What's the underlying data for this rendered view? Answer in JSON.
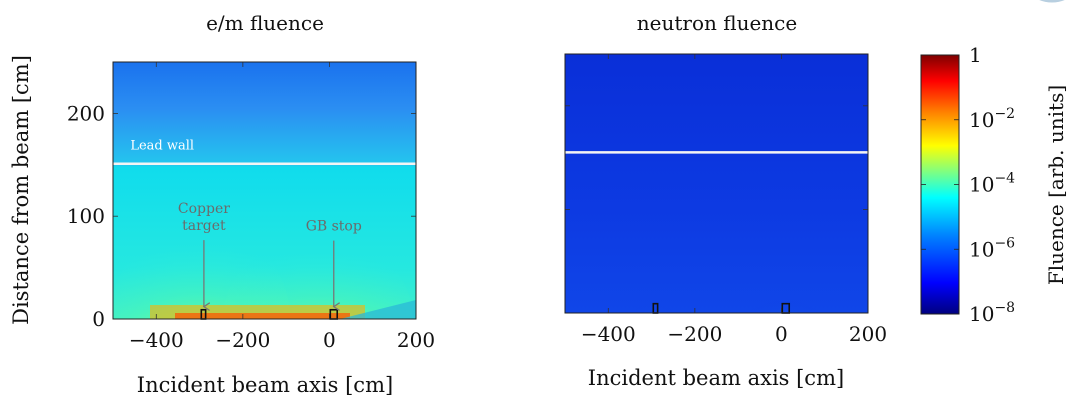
{
  "chart_data": [
    {
      "type": "heatmap",
      "title": "e/m fluence",
      "xlabel": "Incident beam axis [cm]",
      "ylabel": "Distance from beam [cm]",
      "xlim": [
        -500,
        200
      ],
      "ylim": [
        0,
        250
      ],
      "xticks": [
        "−400",
        "−200",
        "0",
        "200"
      ],
      "xtick_values": [
        -400,
        -200,
        0,
        200
      ],
      "yticks": [
        "0",
        "100",
        "200"
      ],
      "ytick_values": [
        0,
        100,
        200
      ],
      "lead_wall_y": 151,
      "annotations": [
        {
          "text": "Lead wall",
          "x": -460,
          "y": 165
        },
        {
          "text_lines": [
            "Copper",
            "target"
          ],
          "x": -290,
          "y": 103,
          "arrow_to": [
            -290,
            12
          ]
        },
        {
          "text_lines": [
            "GB stop"
          ],
          "x": 10,
          "y": 86,
          "arrow_to": [
            10,
            12
          ]
        }
      ],
      "objects": [
        {
          "name": "copper-target",
          "x0": -296,
          "x1": -286,
          "y0": 0,
          "y1": 9
        },
        {
          "name": "gb-stop",
          "x0": 2,
          "x1": 18,
          "y0": 0,
          "y1": 9
        }
      ]
    },
    {
      "type": "heatmap",
      "title": "neutron fluence",
      "xlabel": "Incident beam axis [cm]",
      "ylabel": "",
      "xlim": [
        -500,
        200
      ],
      "ylim": [
        0,
        250
      ],
      "xticks": [
        "−400",
        "−200",
        "0",
        "200"
      ],
      "xtick_values": [
        -400,
        -200,
        0,
        200
      ],
      "yticks": [],
      "lead_wall_y": 155,
      "objects": [
        {
          "name": "copper-target",
          "x0": -296,
          "x1": -286,
          "y0": 0,
          "y1": 9
        },
        {
          "name": "gb-stop",
          "x0": 2,
          "x1": 18,
          "y0": 0,
          "y1": 9
        }
      ]
    }
  ],
  "colorbar": {
    "label": "Fluence [arb. units]",
    "scale": "log",
    "range": [
      1e-08,
      1
    ],
    "ticks": [
      {
        "value": 1,
        "base": "1",
        "exp": ""
      },
      {
        "value": 0.01,
        "base": "10",
        "exp": "−2"
      },
      {
        "value": 0.0001,
        "base": "10",
        "exp": "−4"
      },
      {
        "value": 1e-06,
        "base": "10",
        "exp": "−6"
      },
      {
        "value": 1e-08,
        "base": "10",
        "exp": "−8"
      }
    ],
    "colors": [
      "#00007f",
      "#0000ff",
      "#0080ff",
      "#00ffff",
      "#80ff80",
      "#ffff00",
      "#ff8000",
      "#ff0000",
      "#7f0000"
    ]
  }
}
